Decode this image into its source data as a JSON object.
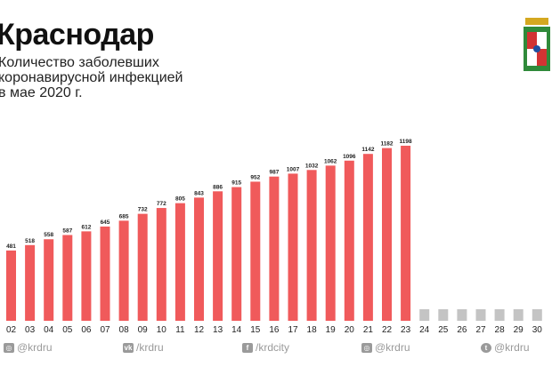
{
  "header": {
    "title": "Краснодар",
    "subtitle_lines": [
      "Количество заболевших",
      "коронавирусной инфекцией",
      "в мае 2020 г."
    ]
  },
  "footer": {
    "items": [
      {
        "icon": "instagram-icon",
        "glyph": "◎",
        "label": "@krdru"
      },
      {
        "icon": "vk-icon",
        "glyph": "vk",
        "label": "/krdru"
      },
      {
        "icon": "facebook-icon",
        "glyph": "f",
        "label": "/krdcity"
      },
      {
        "icon": "instagram-icon",
        "glyph": "◎",
        "label": "@krdru"
      },
      {
        "icon": "twitter-icon",
        "glyph": "t",
        "label": "@krdru"
      }
    ]
  },
  "colors": {
    "bar": "#f05a5b",
    "future": "#c4c4c4",
    "footer": "#9a9a9a"
  },
  "chart_data": {
    "type": "bar",
    "categories": [
      "02",
      "03",
      "04",
      "05",
      "06",
      "07",
      "08",
      "09",
      "10",
      "11",
      "12",
      "13",
      "14",
      "15",
      "16",
      "17",
      "18",
      "19",
      "20",
      "21",
      "22",
      "23",
      "24",
      "25",
      "26",
      "27",
      "28",
      "29",
      "30"
    ],
    "values": [
      481,
      518,
      558,
      587,
      612,
      645,
      685,
      732,
      772,
      805,
      843,
      886,
      915,
      952,
      987,
      1007,
      1032,
      1062,
      1096,
      1142,
      1182,
      1198,
      null,
      null,
      null,
      null,
      null,
      null,
      null
    ],
    "ylim": [
      0,
      1220
    ],
    "value_labels_on_bars": true,
    "placeholder_for_missing": "grey stub"
  }
}
